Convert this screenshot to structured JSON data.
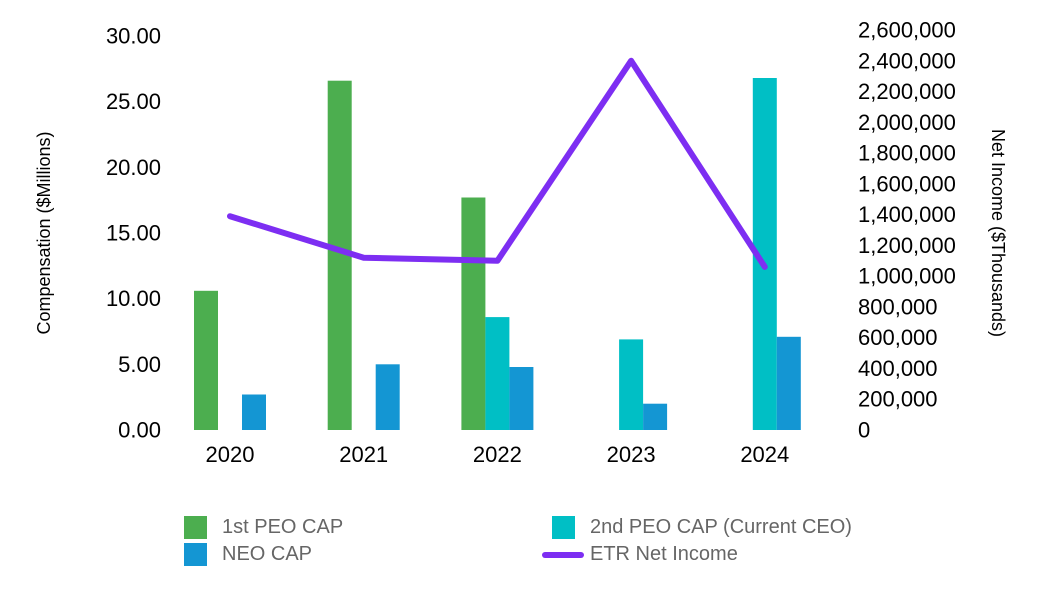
{
  "chart_data": {
    "type": "bar+line",
    "categories": [
      "2020",
      "2021",
      "2022",
      "2023",
      "2024"
    ],
    "bar_series": [
      {
        "key": "first-peo-cap",
        "name": "1st PEO CAP",
        "color": "#4cae4f",
        "axis": "left",
        "values": [
          10.6,
          26.6,
          17.7,
          null,
          null
        ]
      },
      {
        "key": "second-peo-cap",
        "name": "2nd PEO CAP (Current CEO)",
        "color": "#00bfc5",
        "axis": "left",
        "values": [
          null,
          null,
          8.6,
          6.9,
          26.8
        ]
      },
      {
        "key": "neo-cap",
        "name": "NEO CAP",
        "color": "#1496d3",
        "axis": "left",
        "values": [
          2.7,
          5.0,
          4.8,
          2.0,
          7.1
        ]
      }
    ],
    "line_series": {
      "key": "etr-net-income",
      "name": "ETR Net Income",
      "color": "#7d2ef2",
      "axis": "right",
      "values": [
        1390000,
        1120000,
        1100000,
        2400000,
        1060000
      ]
    },
    "left_axis": {
      "label": "Compensation ($Millions)",
      "min": 0,
      "max": 30,
      "step": 5,
      "ticks": [
        "0.00",
        "5.00",
        "10.00",
        "15.00",
        "20.00",
        "25.00",
        "30.00"
      ]
    },
    "right_axis": {
      "label": "Net Income ($Thousands)",
      "min": 0,
      "max": 2600000,
      "step": 200000,
      "ticks": [
        "0",
        "200,000",
        "400,000",
        "600,000",
        "800,000",
        "1,000,000",
        "1,200,000",
        "1,400,000",
        "1,600,000",
        "1,800,000",
        "2,000,000",
        "2,200,000",
        "2,400,000",
        "2,600,000"
      ]
    },
    "legend": {
      "position": "bottom",
      "columns": [
        {
          "items": [
            {
              "label": "1st PEO CAP",
              "swatch": "square",
              "color": "#4cae4f"
            },
            {
              "label": "NEO CAP",
              "swatch": "square",
              "color": "#1496d3"
            }
          ]
        },
        {
          "items": [
            {
              "label": "2nd PEO CAP (Current CEO)",
              "swatch": "square",
              "color": "#00bfc5"
            },
            {
              "label": "ETR Net Income",
              "swatch": "line",
              "color": "#7d2ef2"
            }
          ]
        }
      ]
    },
    "gridlines": false,
    "background": "#ffffff"
  }
}
